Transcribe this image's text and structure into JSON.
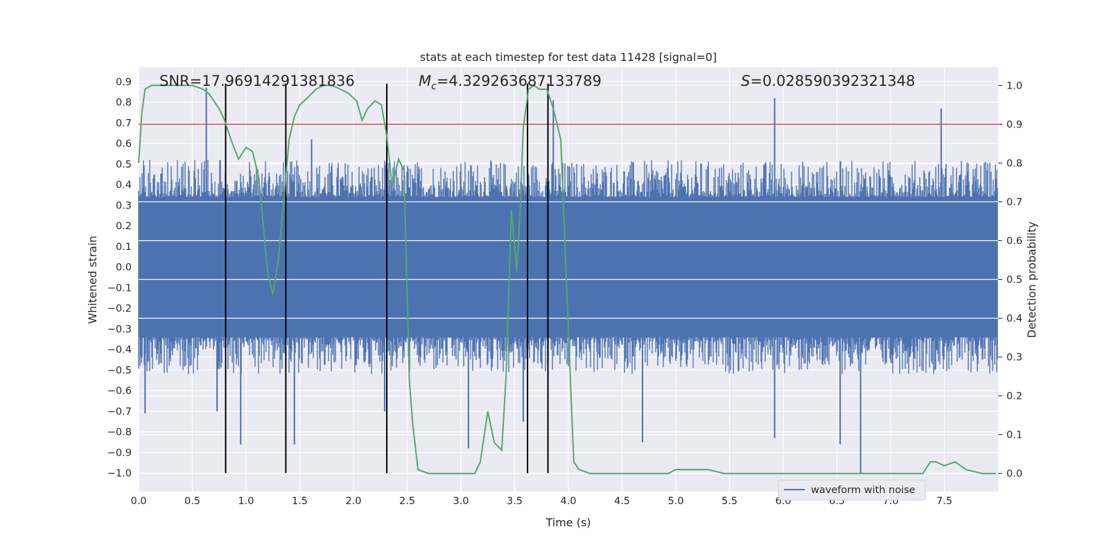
{
  "chart_data": {
    "type": "line",
    "title": "stats at each timestep for test data 11428 [signal=0]",
    "xlabel": "Time (s)",
    "ylabel_left": "Whitened strain",
    "ylabel_right": "Detection probability",
    "xlim": [
      0.0,
      8.0
    ],
    "ylim_left": [
      -1.09,
      0.97
    ],
    "ylim_right": [
      -0.047,
      1.047
    ],
    "x_ticks": [
      "0.0",
      "0.5",
      "1.0",
      "1.5",
      "2.0",
      "2.5",
      "3.0",
      "3.5",
      "4.0",
      "4.5",
      "5.0",
      "5.5",
      "6.0",
      "6.5",
      "7.0",
      "7.5"
    ],
    "y_left_ticks": [
      "0.9",
      "0.8",
      "0.7",
      "0.6",
      "0.5",
      "0.4",
      "0.3",
      "0.2",
      "0.1",
      "0.0",
      "−0.1",
      "−0.2",
      "−0.3",
      "−0.4",
      "−0.5",
      "−0.6",
      "−0.7",
      "−0.8",
      "−0.9",
      "−1.0"
    ],
    "y_right_ticks": [
      "1.0",
      "0.9",
      "0.8",
      "0.7",
      "0.6",
      "0.5",
      "0.4",
      "0.3",
      "0.2",
      "0.1",
      "0.0"
    ],
    "grid": true,
    "annotations": {
      "snr": "SNR=17.96914291381836",
      "mc_symbol": "M",
      "mc_sub": "c",
      "mc_value": "=4.329263687133789",
      "s_symbol": "S",
      "s_value": "=0.028590392321348"
    },
    "threshold_line": {
      "value": 0.9,
      "axis": "right",
      "color": "#c44e52"
    },
    "event_lines": [
      0.81,
      1.37,
      2.31,
      3.62,
      3.81
    ],
    "event_line_range": [
      -1.0,
      0.89
    ],
    "waveform": {
      "name": "waveform with noise",
      "color": "#4c72b0",
      "typical_amplitude": 0.4,
      "spikes": [
        {
          "t": 0.06,
          "v": -0.71
        },
        {
          "t": 0.63,
          "v": 0.87
        },
        {
          "t": 0.73,
          "v": -0.7
        },
        {
          "t": 0.95,
          "v": -0.86
        },
        {
          "t": 1.45,
          "v": -0.86
        },
        {
          "t": 1.61,
          "v": 0.62
        },
        {
          "t": 2.29,
          "v": -0.7
        },
        {
          "t": 3.07,
          "v": -0.88
        },
        {
          "t": 3.58,
          "v": -0.75
        },
        {
          "t": 3.86,
          "v": 0.81
        },
        {
          "t": 4.69,
          "v": -0.85
        },
        {
          "t": 5.92,
          "v": 0.82
        },
        {
          "t": 5.92,
          "v": -0.83
        },
        {
          "t": 6.53,
          "v": -0.86
        },
        {
          "t": 6.72,
          "v": -1.0
        },
        {
          "t": 7.47,
          "v": 0.77
        }
      ]
    },
    "probability": {
      "color": "#55a868",
      "x": [
        0.0,
        0.03,
        0.06,
        0.12,
        0.2,
        0.3,
        0.4,
        0.5,
        0.6,
        0.65,
        0.7,
        0.75,
        0.8,
        0.86,
        0.93,
        1.0,
        1.06,
        1.12,
        1.2,
        1.25,
        1.3,
        1.35,
        1.4,
        1.45,
        1.5,
        1.58,
        1.65,
        1.72,
        1.8,
        1.88,
        1.95,
        2.03,
        2.08,
        2.13,
        2.2,
        2.26,
        2.31,
        2.36,
        2.42,
        2.47,
        2.52,
        2.55,
        2.6,
        2.7,
        2.8,
        3.0,
        3.05,
        3.13,
        3.18,
        3.25,
        3.31,
        3.38,
        3.42,
        3.47,
        3.52,
        3.55,
        3.58,
        3.63,
        3.68,
        3.73,
        3.8,
        3.86,
        3.93,
        4.0,
        4.05,
        4.1,
        4.2,
        4.5,
        4.8,
        4.93,
        5.0,
        5.07,
        5.12,
        5.2,
        5.3,
        5.45,
        5.6,
        5.9,
        6.1,
        6.4,
        6.6,
        6.8,
        7.0,
        7.15,
        7.3,
        7.37,
        7.42,
        7.5,
        7.6,
        7.65,
        7.7,
        7.85,
        7.98
      ],
      "y": [
        0.8,
        0.93,
        0.99,
        1.0,
        1.0,
        1.0,
        1.0,
        1.0,
        0.99,
        0.98,
        0.96,
        0.94,
        0.91,
        0.86,
        0.81,
        0.84,
        0.83,
        0.76,
        0.52,
        0.46,
        0.55,
        0.7,
        0.86,
        0.92,
        0.95,
        0.97,
        0.99,
        1.0,
        1.0,
        0.99,
        0.98,
        0.96,
        0.91,
        0.94,
        0.96,
        0.95,
        0.87,
        0.74,
        0.81,
        0.78,
        0.24,
        0.13,
        0.01,
        0.0,
        0.0,
        0.0,
        0.0,
        0.0,
        0.03,
        0.16,
        0.08,
        0.06,
        0.25,
        0.68,
        0.52,
        0.67,
        0.89,
        0.99,
        1.0,
        0.99,
        0.99,
        0.94,
        0.86,
        0.37,
        0.03,
        0.01,
        0.0,
        0.0,
        0.0,
        0.0,
        0.01,
        0.01,
        0.01,
        0.01,
        0.01,
        0.0,
        0.0,
        0.0,
        0.0,
        0.0,
        0.0,
        0.0,
        0.0,
        0.0,
        0.0,
        0.03,
        0.03,
        0.02,
        0.03,
        0.02,
        0.01,
        0.0,
        0.0
      ]
    }
  }
}
